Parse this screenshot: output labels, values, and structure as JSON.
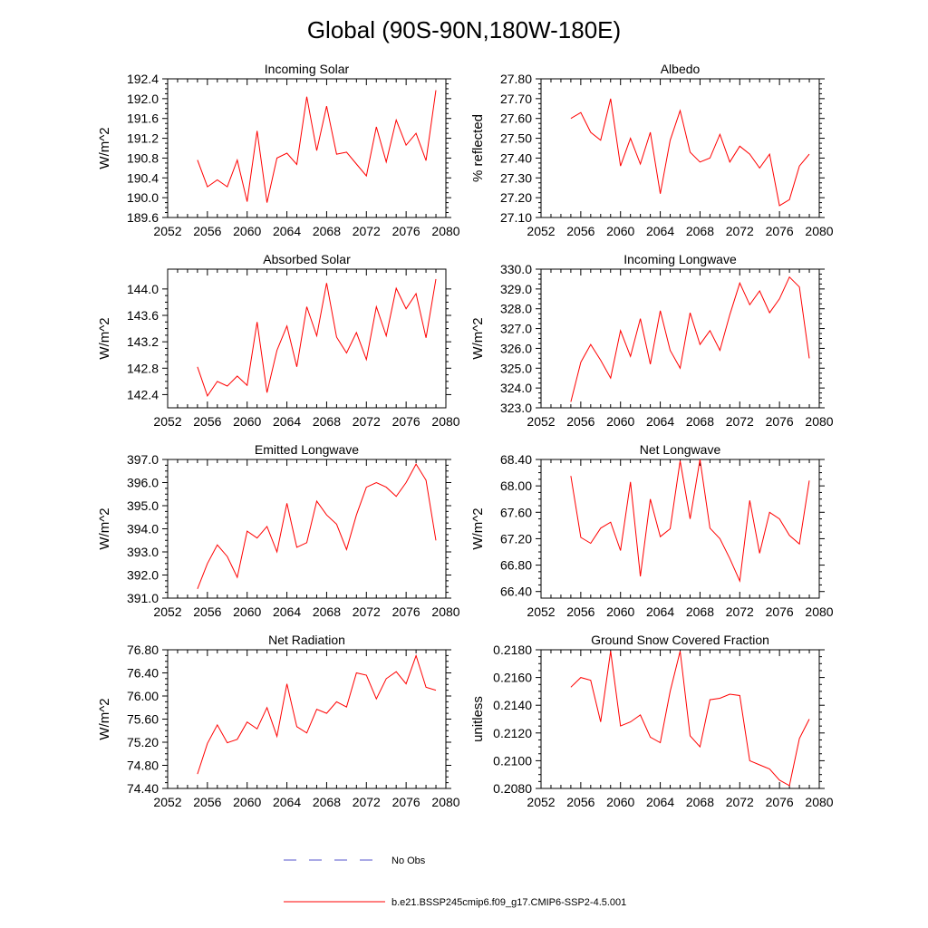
{
  "figure_title": "Global (90S-90N,180W-180E)",
  "colors": {
    "model": "#ff0000",
    "obs": "#5555cc"
  },
  "legend": {
    "obs_label": "No Obs",
    "model_label": "b.e21.BSSP245cmip6.f09_g17.CMIP6-SSP2-4.5.001"
  },
  "chart_data": [
    {
      "type": "line",
      "title": "Incoming Solar",
      "ylabel": "W/m^2",
      "xlim": [
        2052,
        2080
      ],
      "ylim": [
        189.6,
        192.4
      ],
      "xticks": [
        2052,
        2056,
        2060,
        2064,
        2068,
        2072,
        2076,
        2080
      ],
      "yticks": [
        "189.6",
        "190.0",
        "190.4",
        "190.8",
        "191.2",
        "191.6",
        "192.0",
        "192.4"
      ],
      "series": [
        {
          "name": "b.e21.BSSP245cmip6.f09_g17.CMIP6-SSP2-4.5.001",
          "x": [
            2055,
            2056,
            2057,
            2058,
            2059,
            2060,
            2061,
            2062,
            2063,
            2064,
            2065,
            2066,
            2067,
            2068,
            2069,
            2070,
            2071,
            2072,
            2073,
            2074,
            2075,
            2076,
            2077,
            2078,
            2079
          ],
          "y": [
            190.76,
            190.22,
            190.36,
            190.22,
            190.76,
            189.92,
            191.35,
            189.9,
            190.8,
            190.9,
            190.67,
            192.04,
            190.95,
            191.85,
            190.88,
            190.92,
            190.68,
            190.44,
            191.43,
            190.72,
            191.57,
            191.06,
            191.3,
            190.75,
            192.17
          ]
        }
      ]
    },
    {
      "type": "line",
      "title": "Albedo",
      "ylabel": "% reflected",
      "xlim": [
        2052,
        2080
      ],
      "ylim": [
        27.1,
        27.8
      ],
      "xticks": [
        2052,
        2056,
        2060,
        2064,
        2068,
        2072,
        2076,
        2080
      ],
      "yticks": [
        "27.10",
        "27.20",
        "27.30",
        "27.40",
        "27.50",
        "27.60",
        "27.70",
        "27.80"
      ],
      "series": [
        {
          "name": "b.e21.BSSP245cmip6.f09_g17.CMIP6-SSP2-4.5.001",
          "x": [
            2055,
            2056,
            2057,
            2058,
            2059,
            2060,
            2061,
            2062,
            2063,
            2064,
            2065,
            2066,
            2067,
            2068,
            2069,
            2070,
            2071,
            2072,
            2073,
            2074,
            2075,
            2076,
            2077,
            2078,
            2079
          ],
          "y": [
            27.6,
            27.63,
            27.53,
            27.49,
            27.7,
            27.36,
            27.5,
            27.37,
            27.53,
            27.22,
            27.49,
            27.64,
            27.43,
            27.38,
            27.4,
            27.52,
            27.38,
            27.46,
            27.42,
            27.35,
            27.42,
            27.16,
            27.19,
            27.36,
            27.42
          ]
        }
      ]
    },
    {
      "type": "line",
      "title": "Absorbed Solar",
      "ylabel": "W/m^2",
      "xlim": [
        2052,
        2080
      ],
      "ylim": [
        142.2,
        144.3
      ],
      "xticks": [
        2052,
        2056,
        2060,
        2064,
        2068,
        2072,
        2076,
        2080
      ],
      "yticks": [
        "142.4",
        "142.8",
        "143.2",
        "143.6",
        "144.0"
      ],
      "series": [
        {
          "name": "b.e21.BSSP245cmip6.f09_g17.CMIP6-SSP2-4.5.001",
          "x": [
            2055,
            2056,
            2057,
            2058,
            2059,
            2060,
            2061,
            2062,
            2063,
            2064,
            2065,
            2066,
            2067,
            2068,
            2069,
            2070,
            2071,
            2072,
            2073,
            2074,
            2075,
            2076,
            2077,
            2078,
            2079
          ],
          "y": [
            142.82,
            142.38,
            142.6,
            142.53,
            142.68,
            142.54,
            143.5,
            142.43,
            143.07,
            143.44,
            142.82,
            143.73,
            143.29,
            144.09,
            143.27,
            143.03,
            143.34,
            142.93,
            143.73,
            143.29,
            144.01,
            143.7,
            143.93,
            143.26,
            144.15
          ]
        }
      ]
    },
    {
      "type": "line",
      "title": "Incoming Longwave",
      "ylabel": "W/m^2",
      "xlim": [
        2052,
        2080
      ],
      "ylim": [
        323.0,
        330.0
      ],
      "xticks": [
        2052,
        2056,
        2060,
        2064,
        2068,
        2072,
        2076,
        2080
      ],
      "yticks": [
        "323.0",
        "324.0",
        "325.0",
        "326.0",
        "327.0",
        "328.0",
        "329.0",
        "330.0"
      ],
      "series": [
        {
          "name": "b.e21.BSSP245cmip6.f09_g17.CMIP6-SSP2-4.5.001",
          "x": [
            2055,
            2056,
            2057,
            2058,
            2059,
            2060,
            2061,
            2062,
            2063,
            2064,
            2065,
            2066,
            2067,
            2068,
            2069,
            2070,
            2071,
            2072,
            2073,
            2074,
            2075,
            2076,
            2077,
            2078,
            2079
          ],
          "y": [
            323.3,
            325.3,
            326.2,
            325.4,
            324.5,
            326.9,
            325.6,
            327.5,
            325.2,
            327.9,
            325.9,
            325.0,
            327.8,
            326.2,
            326.9,
            325.9,
            327.7,
            329.3,
            328.2,
            328.9,
            327.8,
            328.5,
            329.6,
            329.1,
            325.5
          ]
        }
      ]
    },
    {
      "type": "line",
      "title": "Emitted Longwave",
      "ylabel": "W/m^2",
      "xlim": [
        2052,
        2080
      ],
      "ylim": [
        391.0,
        397.0
      ],
      "xticks": [
        2052,
        2056,
        2060,
        2064,
        2068,
        2072,
        2076,
        2080
      ],
      "yticks": [
        "391.0",
        "392.0",
        "393.0",
        "394.0",
        "395.0",
        "396.0",
        "397.0"
      ],
      "series": [
        {
          "name": "b.e21.BSSP245cmip6.f09_g17.CMIP6-SSP2-4.5.001",
          "x": [
            2055,
            2056,
            2057,
            2058,
            2059,
            2060,
            2061,
            2062,
            2063,
            2064,
            2065,
            2066,
            2067,
            2068,
            2069,
            2070,
            2071,
            2072,
            2073,
            2074,
            2075,
            2076,
            2077,
            2078,
            2079
          ],
          "y": [
            391.4,
            392.5,
            393.3,
            392.8,
            391.9,
            393.9,
            393.6,
            394.1,
            393.0,
            395.1,
            393.2,
            393.4,
            395.2,
            394.6,
            394.2,
            393.1,
            394.6,
            395.8,
            396.0,
            395.8,
            395.4,
            396.0,
            396.8,
            396.1,
            393.5
          ]
        }
      ]
    },
    {
      "type": "line",
      "title": "Net Longwave",
      "ylabel": "W/m^2",
      "xlim": [
        2052,
        2080
      ],
      "ylim": [
        66.3,
        68.4
      ],
      "xticks": [
        2052,
        2056,
        2060,
        2064,
        2068,
        2072,
        2076,
        2080
      ],
      "yticks": [
        "66.40",
        "66.80",
        "67.20",
        "67.60",
        "68.00",
        "68.40"
      ],
      "series": [
        {
          "name": "b.e21.BSSP245cmip6.f09_g17.CMIP6-SSP2-4.5.001",
          "x": [
            2055,
            2056,
            2057,
            2058,
            2059,
            2060,
            2061,
            2062,
            2063,
            2064,
            2065,
            2066,
            2067,
            2068,
            2069,
            2070,
            2071,
            2072,
            2073,
            2074,
            2075,
            2076,
            2077,
            2078,
            2079
          ],
          "y": [
            68.15,
            67.22,
            67.13,
            67.36,
            67.45,
            67.02,
            68.06,
            66.63,
            67.8,
            67.23,
            67.35,
            68.38,
            67.5,
            68.4,
            67.36,
            67.2,
            66.9,
            66.56,
            67.78,
            66.98,
            67.6,
            67.5,
            67.25,
            67.12,
            68.08
          ]
        }
      ]
    },
    {
      "type": "line",
      "title": "Net Radiation",
      "ylabel": "W/m^2",
      "xlim": [
        2052,
        2080
      ],
      "ylim": [
        74.4,
        76.8
      ],
      "xticks": [
        2052,
        2056,
        2060,
        2064,
        2068,
        2072,
        2076,
        2080
      ],
      "yticks": [
        "74.40",
        "74.80",
        "75.20",
        "75.60",
        "76.00",
        "76.40",
        "76.80"
      ],
      "series": [
        {
          "name": "b.e21.BSSP245cmip6.f09_g17.CMIP6-SSP2-4.5.001",
          "x": [
            2055,
            2056,
            2057,
            2058,
            2059,
            2060,
            2061,
            2062,
            2063,
            2064,
            2065,
            2066,
            2067,
            2068,
            2069,
            2070,
            2071,
            2072,
            2073,
            2074,
            2075,
            2076,
            2077,
            2078,
            2079
          ],
          "y": [
            74.65,
            75.18,
            75.5,
            75.19,
            75.25,
            75.55,
            75.43,
            75.8,
            75.3,
            76.21,
            75.47,
            75.36,
            75.77,
            75.7,
            75.9,
            75.81,
            76.4,
            76.36,
            75.95,
            76.3,
            76.42,
            76.21,
            76.7,
            76.15,
            76.1
          ]
        }
      ]
    },
    {
      "type": "line",
      "title": "Ground Snow Covered Fraction",
      "ylabel": "unitless",
      "xlim": [
        2052,
        2080
      ],
      "ylim": [
        0.208,
        0.218
      ],
      "xticks": [
        2052,
        2056,
        2060,
        2064,
        2068,
        2072,
        2076,
        2080
      ],
      "yticks": [
        "0.2080",
        "0.2100",
        "0.2120",
        "0.2140",
        "0.2160",
        "0.2180"
      ],
      "series": [
        {
          "name": "b.e21.BSSP245cmip6.f09_g17.CMIP6-SSP2-4.5.001",
          "x": [
            2055,
            2056,
            2057,
            2058,
            2059,
            2060,
            2061,
            2062,
            2063,
            2064,
            2065,
            2066,
            2067,
            2068,
            2069,
            2070,
            2071,
            2072,
            2073,
            2074,
            2075,
            2076,
            2077,
            2078,
            2079
          ],
          "y": [
            0.2153,
            0.216,
            0.2158,
            0.2128,
            0.2179,
            0.2125,
            0.2128,
            0.2133,
            0.2117,
            0.2113,
            0.215,
            0.2179,
            0.2118,
            0.211,
            0.2144,
            0.2145,
            0.2148,
            0.2147,
            0.21,
            0.2097,
            0.2094,
            0.2086,
            0.2082,
            0.2116,
            0.213
          ]
        }
      ]
    }
  ]
}
